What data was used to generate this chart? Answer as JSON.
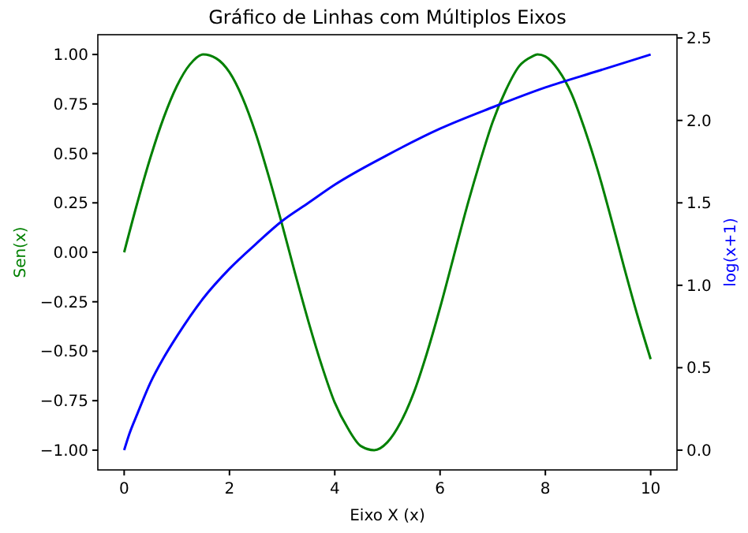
{
  "chart_data": {
    "type": "line",
    "title": "Gráfico de Linhas com Múltiplos Eixos",
    "xlabel": "Eixo X (x)",
    "ylabel": "Sen(x)",
    "y2label": "log(x+1)",
    "xlim": [
      -0.5,
      10.5
    ],
    "xticks": [
      0,
      2,
      4,
      6,
      8,
      10
    ],
    "ylim": [
      -1.1,
      1.1
    ],
    "yticks": [
      {
        "value": -1,
        "label": "−1.00"
      },
      {
        "value": -0.75,
        "label": "−0.75"
      },
      {
        "value": -0.5,
        "label": "−0.50"
      },
      {
        "value": -0.25,
        "label": "−0.25"
      },
      {
        "value": 0,
        "label": "0.00"
      },
      {
        "value": 0.25,
        "label": "0.25"
      },
      {
        "value": 0.5,
        "label": "0.50"
      },
      {
        "value": 0.75,
        "label": "0.75"
      },
      {
        "value": 1,
        "label": "1.00"
      }
    ],
    "y2lim": [
      -0.12,
      2.52
    ],
    "y2ticks": [
      {
        "value": 0,
        "label": "0.0"
      },
      {
        "value": 0.5,
        "label": "0.5"
      },
      {
        "value": 1,
        "label": "1.0"
      },
      {
        "value": 1.5,
        "label": "1.5"
      },
      {
        "value": 2,
        "label": "2.0"
      },
      {
        "value": 2.5,
        "label": "2.5"
      }
    ],
    "grid": false,
    "series": [
      {
        "color": "#008000",
        "x": [
          0,
          0.25,
          0.5,
          0.75,
          1,
          1.25,
          1.5,
          1.75,
          2,
          2.25,
          2.5,
          2.75,
          3,
          3.25,
          3.5,
          3.75,
          4,
          4.25,
          4.5,
          4.75,
          5,
          5.25,
          5.5,
          5.75,
          6,
          6.25,
          6.5,
          6.75,
          7,
          7.25,
          7.5,
          7.75,
          7.85,
          8,
          8.25,
          8.5,
          8.75,
          9,
          9.25,
          9.5,
          9.75,
          10
        ],
        "values": [
          0,
          0.25,
          0.48,
          0.68,
          0.84,
          0.95,
          1.0,
          0.98,
          0.91,
          0.78,
          0.6,
          0.38,
          0.14,
          -0.11,
          -0.35,
          -0.57,
          -0.76,
          -0.89,
          -0.98,
          -1.0,
          -0.96,
          -0.86,
          -0.71,
          -0.51,
          -0.28,
          -0.03,
          0.22,
          0.45,
          0.66,
          0.82,
          0.94,
          0.99,
          1.0,
          0.99,
          0.92,
          0.8,
          0.62,
          0.41,
          0.17,
          -0.08,
          -0.32,
          -0.54
        ]
      },
      {
        "color": "#0000ff",
        "axis": "y2",
        "x": [
          0,
          0.1,
          0.25,
          0.5,
          0.75,
          1,
          1.5,
          2,
          2.5,
          3,
          3.5,
          4,
          5,
          6,
          7,
          8,
          9,
          10
        ],
        "values": [
          0,
          0.1,
          0.22,
          0.41,
          0.56,
          0.69,
          0.92,
          1.1,
          1.25,
          1.39,
          1.5,
          1.61,
          1.79,
          1.95,
          2.08,
          2.2,
          2.3,
          2.4
        ]
      }
    ]
  }
}
